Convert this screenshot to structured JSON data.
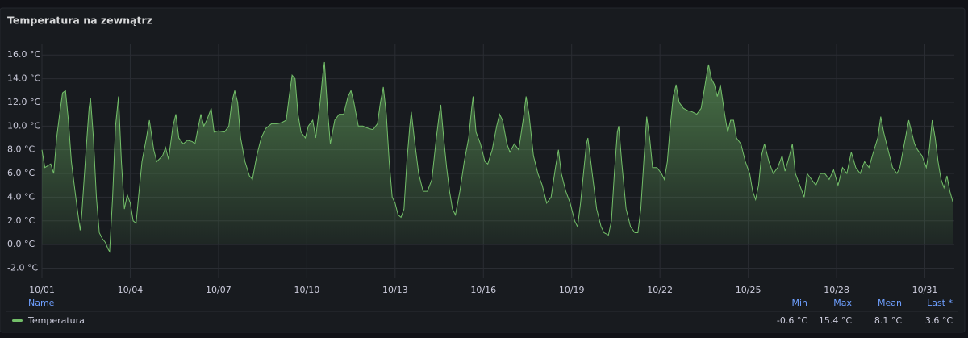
{
  "chart_data": {
    "type": "line",
    "title": "Temperatura na zewnątrz",
    "x": [
      0,
      0.1,
      0.3,
      0.4,
      0.5,
      0.6,
      0.7,
      0.8,
      0.9,
      1.0,
      1.1,
      1.2,
      1.3,
      1.35,
      1.5,
      1.6,
      1.65,
      1.75,
      1.85,
      1.95,
      2.05,
      2.15,
      2.25,
      2.3,
      2.4,
      2.5,
      2.6,
      2.7,
      2.8,
      2.9,
      3.0,
      3.1,
      3.2,
      3.3,
      3.4,
      3.55,
      3.65,
      3.8,
      3.9,
      4.1,
      4.2,
      4.3,
      4.45,
      4.55,
      4.65,
      4.8,
      4.95,
      5.1,
      5.2,
      5.3,
      5.4,
      5.5,
      5.6,
      5.75,
      5.85,
      6.0,
      6.2,
      6.35,
      6.45,
      6.55,
      6.65,
      6.75,
      6.9,
      7.05,
      7.15,
      7.3,
      7.45,
      7.6,
      7.8,
      8.0,
      8.15,
      8.3,
      8.4,
      8.5,
      8.6,
      8.7,
      8.8,
      8.95,
      9.05,
      9.2,
      9.3,
      9.45,
      9.55,
      9.6,
      9.7,
      9.8,
      9.95,
      10.1,
      10.25,
      10.4,
      10.5,
      10.6,
      10.75,
      10.9,
      11.1,
      11.25,
      11.4,
      11.5,
      11.6,
      11.7,
      11.8,
      11.9,
      12.0,
      12.1,
      12.2,
      12.3,
      12.4,
      12.5,
      12.55,
      12.65,
      12.8,
      12.95,
      13.1,
      13.25,
      13.4,
      13.5,
      13.55,
      13.65,
      13.75,
      13.85,
      13.95,
      14.05,
      14.2,
      14.35,
      14.5,
      14.6,
      14.65,
      14.75,
      14.9,
      15.05,
      15.15,
      15.3,
      15.45,
      15.55,
      15.65,
      15.8,
      15.9,
      16.05,
      16.2,
      16.35,
      16.45,
      16.55,
      16.7,
      16.85,
      17.0,
      17.15,
      17.3,
      17.45,
      17.55,
      17.65,
      17.8,
      17.95,
      18.1,
      18.2,
      18.3,
      18.4,
      18.5,
      18.55,
      18.7,
      18.85,
      19.0,
      19.1,
      19.25,
      19.35,
      19.45,
      19.55,
      19.6,
      19.7,
      19.85,
      20.0,
      20.15,
      20.25,
      20.35,
      20.45,
      20.55,
      20.65,
      20.75,
      20.9,
      21.05,
      21.15,
      21.25,
      21.35,
      21.45,
      21.55,
      21.65,
      21.8,
      21.95,
      22.1,
      22.25,
      22.4,
      22.5,
      22.6,
      22.65,
      22.75,
      22.85,
      22.95,
      23.05,
      23.2,
      23.3,
      23.4,
      23.5,
      23.6,
      23.75,
      23.9,
      24.05,
      24.15,
      24.25,
      24.35,
      24.45,
      24.55,
      24.7,
      24.85,
      25.0,
      25.15,
      25.25,
      25.4,
      25.5,
      25.6,
      25.75,
      25.9,
      26.0,
      26.15,
      26.3,
      26.45,
      26.6,
      26.75,
      26.9,
      27.05,
      27.2,
      27.35,
      27.5,
      27.65,
      27.8,
      27.95,
      28.1,
      28.25,
      28.4,
      28.5,
      28.6,
      28.75,
      28.9,
      29.05,
      29.15,
      29.3,
      29.45,
      29.55,
      29.65,
      29.75,
      29.9,
      30.05,
      30.15,
      30.25,
      30.35,
      30.45,
      30.55,
      30.65,
      30.75,
      30.85,
      30.95
    ],
    "series": [
      {
        "name": "Temperatura",
        "color": "#73bf69",
        "values": [
          8.0,
          6.5,
          6.8,
          6.0,
          9.0,
          11.0,
          12.8,
          13.0,
          10.5,
          7.0,
          5.0,
          3.0,
          1.2,
          2.5,
          8.0,
          11.5,
          12.4,
          9.0,
          4.0,
          1.0,
          0.5,
          0.2,
          -0.4,
          -0.6,
          4.0,
          10.0,
          12.5,
          7.0,
          3.0,
          4.2,
          3.5,
          2.0,
          1.8,
          4.5,
          7.0,
          9.0,
          10.5,
          8.0,
          7.0,
          7.5,
          8.2,
          7.2,
          10.0,
          11.0,
          9.0,
          8.5,
          8.8,
          8.7,
          8.5,
          9.8,
          11.0,
          10.0,
          10.5,
          11.5,
          9.5,
          9.6,
          9.5,
          10.0,
          12.0,
          13.0,
          12.0,
          9.0,
          7.0,
          5.8,
          5.5,
          7.5,
          9.0,
          9.8,
          10.2,
          10.2,
          10.3,
          10.5,
          12.5,
          14.3,
          14.0,
          11.0,
          9.5,
          9.0,
          10.0,
          10.5,
          9.0,
          12.0,
          14.5,
          15.4,
          11.5,
          8.5,
          10.5,
          11.0,
          11.0,
          12.5,
          13.0,
          12.0,
          10.0,
          10.0,
          9.8,
          9.7,
          10.2,
          12.0,
          13.3,
          11.0,
          7.0,
          4.0,
          3.5,
          2.5,
          2.3,
          3.0,
          7.0,
          10.0,
          11.2,
          9.0,
          6.0,
          4.5,
          4.5,
          5.5,
          9.0,
          11.0,
          11.8,
          9.0,
          6.5,
          4.5,
          3.0,
          2.5,
          4.5,
          7.0,
          9.0,
          11.5,
          12.5,
          9.5,
          8.5,
          7.0,
          6.8,
          8.0,
          10.0,
          11.0,
          10.5,
          8.5,
          7.8,
          8.5,
          8.0,
          10.5,
          12.5,
          11.0,
          7.5,
          6.0,
          5.0,
          3.5,
          4.0,
          6.5,
          8.0,
          6.0,
          4.5,
          3.5,
          2.0,
          1.5,
          3.5,
          6.0,
          8.5,
          9.0,
          6.0,
          3.0,
          1.5,
          1.0,
          0.8,
          2.0,
          6.0,
          9.5,
          10.0,
          7.0,
          3.0,
          1.5,
          1.0,
          1.0,
          3.0,
          7.0,
          10.8,
          9.0,
          6.5,
          6.5,
          6.0,
          5.5,
          7.0,
          10.0,
          12.5,
          13.5,
          12.0,
          11.5,
          11.3,
          11.2,
          11.0,
          11.5,
          13.0,
          14.5,
          15.2,
          14.0,
          13.5,
          12.5,
          13.5,
          11.0,
          9.5,
          10.5,
          10.5,
          9.0,
          8.5,
          7.0,
          6.0,
          4.5,
          3.8,
          5.0,
          7.5,
          8.5,
          7.0,
          6.0,
          6.5,
          7.5,
          6.2,
          7.5,
          8.5,
          6.0,
          5.0,
          4.0,
          6.0,
          5.5,
          5.0,
          6.0,
          6.0,
          5.5,
          6.3,
          5.0,
          6.5,
          6.0,
          7.8,
          6.5,
          6.0,
          7.0,
          6.5,
          7.8,
          9.0,
          10.8,
          9.5,
          8.0,
          6.5,
          6.0,
          6.5,
          8.5,
          10.5,
          9.5,
          8.5,
          8.0,
          7.5,
          6.5,
          8.0,
          10.5,
          9.0,
          7.0,
          5.5,
          4.8,
          5.8,
          4.5,
          3.6
        ]
      }
    ],
    "xlim": [
      0,
      31
    ],
    "xticks": [
      {
        "value": 0,
        "label": "10/01"
      },
      {
        "value": 3,
        "label": "10/04"
      },
      {
        "value": 6,
        "label": "10/07"
      },
      {
        "value": 9,
        "label": "10/10"
      },
      {
        "value": 12,
        "label": "10/13"
      },
      {
        "value": 15,
        "label": "10/16"
      },
      {
        "value": 18,
        "label": "10/19"
      },
      {
        "value": 21,
        "label": "10/22"
      },
      {
        "value": 24,
        "label": "10/25"
      },
      {
        "value": 27,
        "label": "10/28"
      },
      {
        "value": 30,
        "label": "10/31"
      }
    ],
    "ylim": [
      -2.85,
      16.9
    ],
    "yticks": [
      {
        "value": -2,
        "label": "-2.0 °C"
      },
      {
        "value": 0,
        "label": "0.0 °C"
      },
      {
        "value": 2,
        "label": "2.0 °C"
      },
      {
        "value": 4,
        "label": "4.0 °C"
      },
      {
        "value": 6,
        "label": "6.0 °C"
      },
      {
        "value": 8,
        "label": "8.0 °C"
      },
      {
        "value": 10,
        "label": "10.0 °C"
      },
      {
        "value": 12,
        "label": "12.0 °C"
      },
      {
        "value": 14,
        "label": "14.0 °C"
      },
      {
        "value": 16,
        "label": "16.0 °C"
      }
    ],
    "grid": true,
    "legend": {
      "headers": [
        "Name",
        "Min",
        "Max",
        "Mean",
        "Last *"
      ],
      "stats": [
        {
          "value": -0.6,
          "label": "-0.6 °C"
        },
        {
          "value": 15.4,
          "label": "15.4 °C"
        },
        {
          "value": 8.1,
          "label": "8.1 °C"
        },
        {
          "value": 3.6,
          "label": "3.6 °C"
        }
      ]
    }
  }
}
